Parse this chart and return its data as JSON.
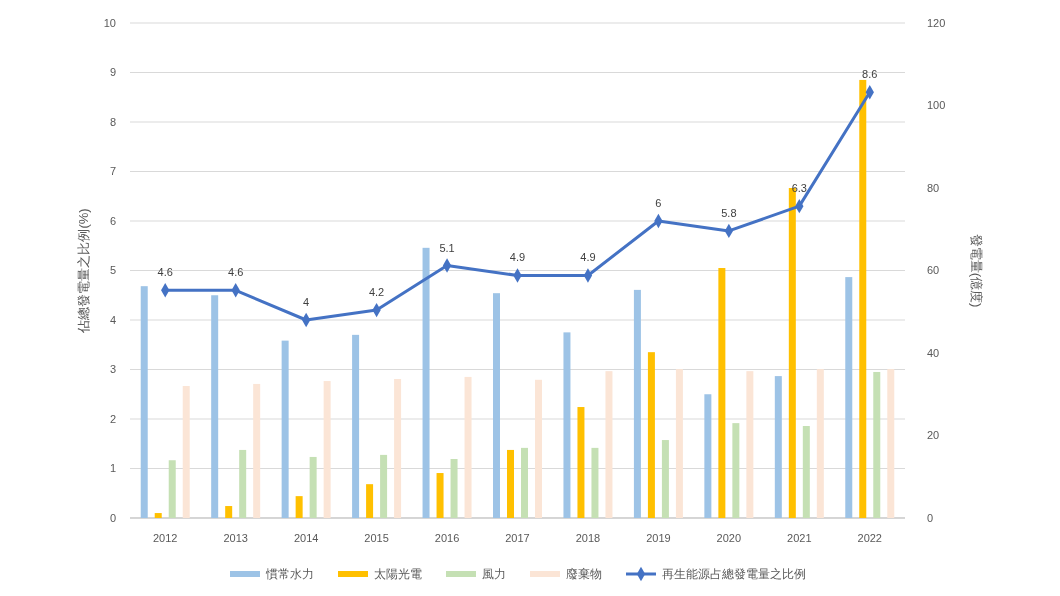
{
  "chart_data": {
    "type": "bar",
    "categories": [
      "2012",
      "2013",
      "2014",
      "2015",
      "2016",
      "2017",
      "2018",
      "2019",
      "2020",
      "2021",
      "2022"
    ],
    "ylabel": "佔總發電量之比例(%)",
    "y2label": "發電量(億度)",
    "ylim": [
      0,
      10
    ],
    "yticks": [
      0,
      1,
      2,
      3,
      4,
      5,
      6,
      7,
      8,
      9,
      10
    ],
    "y2lim": [
      0,
      120
    ],
    "y2ticks": [
      0,
      20,
      40,
      60,
      80,
      100,
      120
    ],
    "grid": "y",
    "legend": "bottom",
    "series": [
      {
        "name": "慣常水力",
        "color": "#9dc3e6",
        "axis": "y2",
        "values": [
          56.2,
          54,
          43,
          44.4,
          65.5,
          54.5,
          45,
          55.3,
          30,
          34.4,
          58.4
        ]
      },
      {
        "name": "太陽光電",
        "color": "#ffc000",
        "axis": "y2",
        "values": [
          1.2,
          2.9,
          5.3,
          8.2,
          10.9,
          16.5,
          26.9,
          40.2,
          60.6,
          80,
          106.2
        ]
      },
      {
        "name": "風力",
        "color": "#c5e0b4",
        "axis": "y2",
        "values": [
          14,
          16.5,
          14.8,
          15.3,
          14.3,
          17,
          17,
          18.9,
          23,
          22.3,
          35.4
        ]
      },
      {
        "name": "廢棄物",
        "color": "#fbe5d6",
        "axis": "y2",
        "values": [
          32,
          32.5,
          33.2,
          33.7,
          34.2,
          33.5,
          35.6,
          36.1,
          35.6,
          36.1,
          36.1
        ]
      },
      {
        "name": "再生能源占總發電量之比例",
        "type": "line",
        "color": "#4472c4",
        "marker": "diamond",
        "data_labels": true,
        "values": [
          4.6,
          4.6,
          4,
          4.2,
          5.1,
          4.9,
          4.9,
          6,
          5.8,
          6.3,
          8.6
        ]
      }
    ]
  }
}
